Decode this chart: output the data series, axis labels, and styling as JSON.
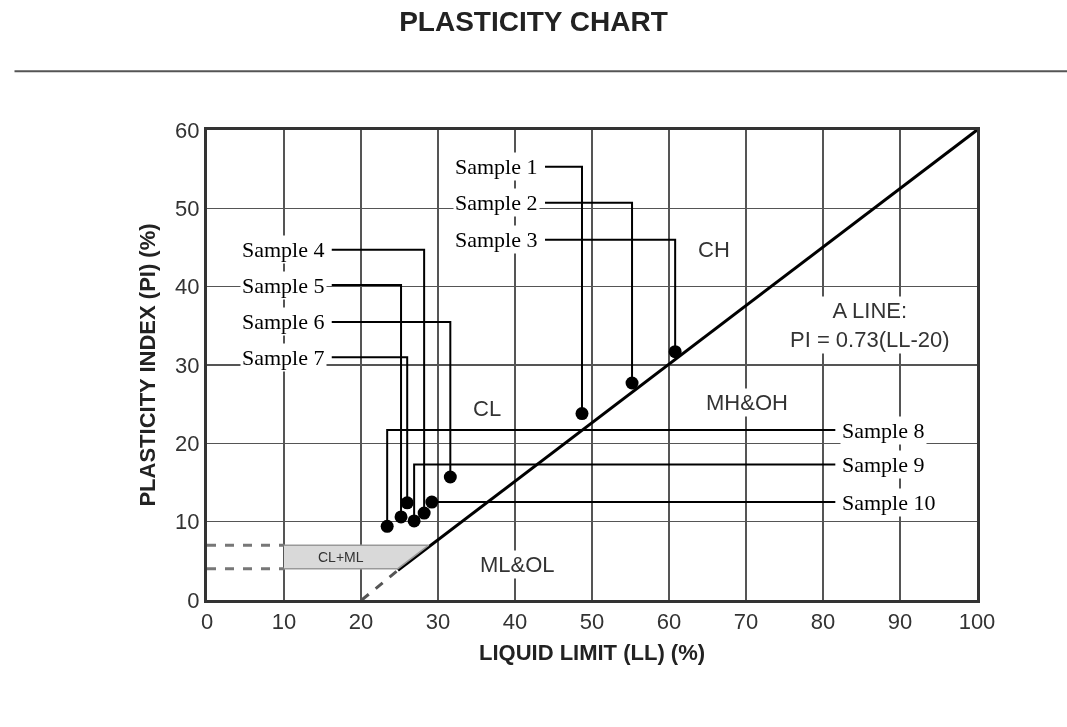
{
  "chart_data": {
    "type": "scatter",
    "title": "PLASTICITY CHART",
    "xlabel": "LIQUID LIMIT (LL) (%)",
    "ylabel": "PLASTICITY INDEX (PI) (%)",
    "xlim": [
      0,
      100
    ],
    "ylim": [
      0,
      60
    ],
    "xticks": [
      0,
      10,
      20,
      30,
      40,
      50,
      60,
      70,
      80,
      90,
      100
    ],
    "yticks": [
      0,
      10,
      20,
      30,
      40,
      50,
      60
    ],
    "grid": true,
    "marker": "circle",
    "series": [
      {
        "color": "#000000",
        "x": [
          48.7,
          55.2,
          60.8,
          28.2,
          25.2,
          31.6,
          26.0,
          23.4,
          26.9,
          29.2
        ],
        "values": [
          23.8,
          27.7,
          31.7,
          11.1,
          10.6,
          15.7,
          12.4,
          9.4,
          10.1,
          12.5
        ]
      },
      {
        "type": "line",
        "color": "#555555",
        "line_style": "dashed",
        "marker": "none",
        "x": [
          20.1,
          24.8
        ],
        "values": [
          0,
          3.8
        ]
      },
      {
        "type": "line",
        "color": "#000000",
        "line_style": "solid",
        "marker": "none",
        "x": [
          24.8,
          100
        ],
        "values": [
          3.8,
          60
        ]
      },
      {
        "type": "area",
        "name": "CL+ML",
        "color": "#d9d9d9",
        "marker": "none",
        "x": [
          10,
          28.8,
          24.8,
          10
        ],
        "values": [
          7,
          7,
          4,
          4
        ]
      },
      {
        "type": "line",
        "color": "#777777",
        "line_style": "dashed",
        "marker": "none",
        "x": [
          0,
          10
        ],
        "values": [
          7,
          7
        ]
      },
      {
        "type": "line",
        "color": "#777777",
        "line_style": "dashed",
        "marker": "none",
        "x": [
          0,
          10
        ],
        "values": [
          4,
          4
        ]
      }
    ],
    "annotations": [
      {
        "text": "Sample 1",
        "x": 48.7,
        "y": 23.8
      },
      {
        "text": "Sample 2",
        "x": 55.2,
        "y": 27.7
      },
      {
        "text": "Sample 3",
        "x": 60.8,
        "y": 31.7
      },
      {
        "text": "Sample 4",
        "x": 28.2,
        "y": 11.1
      },
      {
        "text": "Sample 5",
        "x": 25.2,
        "y": 10.6
      },
      {
        "text": "Sample 6",
        "x": 31.6,
        "y": 15.7
      },
      {
        "text": "Sample 7",
        "x": 26.0,
        "y": 12.4
      },
      {
        "text": "Sample 8",
        "x": 23.4,
        "y": 9.4
      },
      {
        "text": "Sample 9",
        "x": 26.9,
        "y": 10.1
      },
      {
        "text": "Sample 10",
        "x": 29.2,
        "y": 12.5
      },
      "CH",
      "CL",
      "MH&OH",
      "ML&OL",
      "A LINE:\nPI = 0.73(LL-20)"
    ]
  }
}
